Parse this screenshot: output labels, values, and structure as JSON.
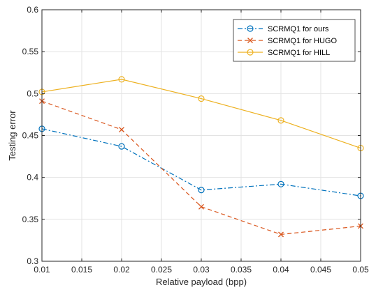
{
  "chart_data": {
    "type": "line",
    "title": "",
    "xlabel": "Relative payload (bpp)",
    "ylabel": "Testing error",
    "xlim": [
      0.01,
      0.05
    ],
    "ylim": [
      0.3,
      0.6
    ],
    "xticks": [
      0.01,
      0.015,
      0.02,
      0.025,
      0.03,
      0.035,
      0.04,
      0.045,
      0.05
    ],
    "xtick_labels": [
      "0.01",
      "0.015",
      "0.02",
      "0.025",
      "0.03",
      "0.035",
      "0.04",
      "0.045",
      "0.05"
    ],
    "yticks": [
      0.3,
      0.35,
      0.4,
      0.45,
      0.5,
      0.55,
      0.6
    ],
    "ytick_labels": [
      "0.3",
      "0.35",
      "0.4",
      "0.45",
      "0.5",
      "0.55",
      "0.6"
    ],
    "grid": true,
    "legend_position": "top-right",
    "x": [
      0.01,
      0.02,
      0.03,
      0.04,
      0.05
    ],
    "series": [
      {
        "name": "SCRMQ1 for ours",
        "values": [
          0.458,
          0.437,
          0.385,
          0.392,
          0.378
        ],
        "color": "#0072BD",
        "dash": "dash-dot",
        "marker": "circle"
      },
      {
        "name": "SCRMQ1 for HUGO",
        "values": [
          0.491,
          0.457,
          0.365,
          0.332,
          0.342
        ],
        "color": "#D95319",
        "dash": "dashed",
        "marker": "x"
      },
      {
        "name": "SCRMQ1 for HILL",
        "values": [
          0.502,
          0.517,
          0.494,
          0.468,
          0.435
        ],
        "color": "#EDB120",
        "dash": "solid",
        "marker": "circle"
      }
    ]
  }
}
